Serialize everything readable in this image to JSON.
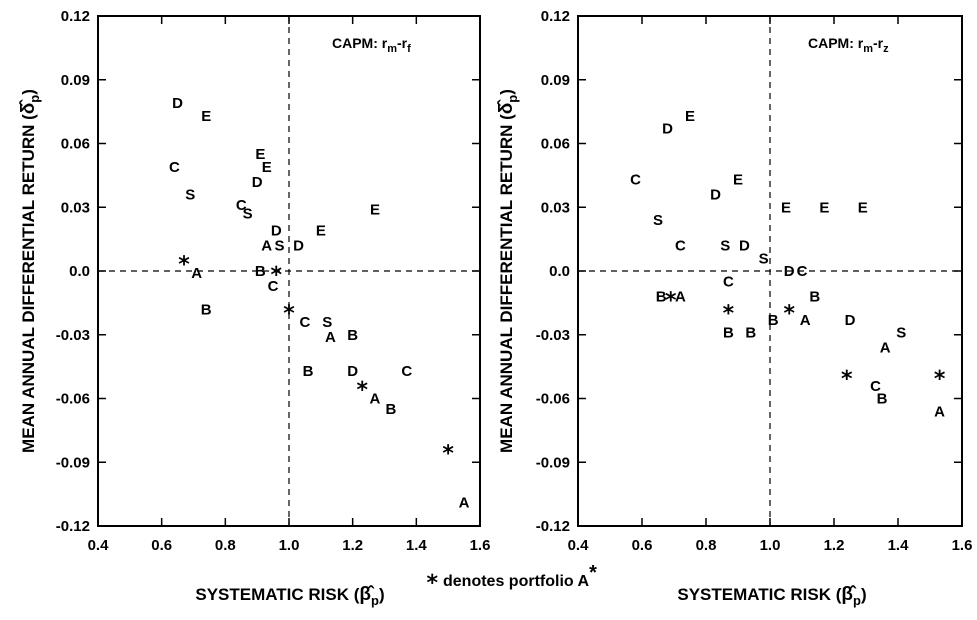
{
  "footnote": {
    "star": "*",
    "text": "denotes portfolio A",
    "sup": "*"
  },
  "chart_data": [
    {
      "type": "scatter",
      "annotation": {
        "prefix": "CAPM: r",
        "s1": "m",
        "dash": "-r",
        "s2": "f"
      },
      "xlabel": "SYSTEMATIC RISK (",
      "xlabel_symbol": "β̂",
      "xlabel_sub": "p",
      "xlabel_close": ")",
      "ylabel": "MEAN ANNUAL DIFFERENTIAL RETURN (",
      "ylabel_symbol": "δ̂",
      "ylabel_sub": "p",
      "ylabel_close": ")",
      "xlim": [
        0.4,
        1.6
      ],
      "ylim": [
        -0.12,
        0.12
      ],
      "xticks": [
        "0.4",
        "0.6",
        "0.8",
        "1.0",
        "1.2",
        "1.4",
        "1.6"
      ],
      "yticks": [
        "0.12",
        "0.09",
        "0.06",
        "0.03",
        "0.0",
        "-0.03",
        "-0.06",
        "-0.09",
        "-0.12"
      ],
      "reference_lines": {
        "x": 1.0,
        "y": 0.0
      },
      "points": [
        {
          "label": "D",
          "x": 0.65,
          "y": 0.079
        },
        {
          "label": "E",
          "x": 0.74,
          "y": 0.073
        },
        {
          "label": "E",
          "x": 0.91,
          "y": 0.055
        },
        {
          "label": "E",
          "x": 0.93,
          "y": 0.049
        },
        {
          "label": "C",
          "x": 0.64,
          "y": 0.049
        },
        {
          "label": "D",
          "x": 0.9,
          "y": 0.042
        },
        {
          "label": "S",
          "x": 0.69,
          "y": 0.036
        },
        {
          "label": "C",
          "x": 0.85,
          "y": 0.031
        },
        {
          "label": "S",
          "x": 0.87,
          "y": 0.027
        },
        {
          "label": "E",
          "x": 1.27,
          "y": 0.029
        },
        {
          "label": "D",
          "x": 0.96,
          "y": 0.019
        },
        {
          "label": "E",
          "x": 1.1,
          "y": 0.019
        },
        {
          "label": "A",
          "x": 0.93,
          "y": 0.012
        },
        {
          "label": "S",
          "x": 0.97,
          "y": 0.012
        },
        {
          "label": "D",
          "x": 1.03,
          "y": 0.012
        },
        {
          "label": "*",
          "x": 0.67,
          "y": 0.005
        },
        {
          "label": "A",
          "x": 0.71,
          "y": -0.001
        },
        {
          "label": "B",
          "x": 0.91,
          "y": 0.0
        },
        {
          "label": "*",
          "x": 0.96,
          "y": 0.0
        },
        {
          "label": "C",
          "x": 0.95,
          "y": -0.007
        },
        {
          "label": "B",
          "x": 0.74,
          "y": -0.018
        },
        {
          "label": "*",
          "x": 1.0,
          "y": -0.018
        },
        {
          "label": "C",
          "x": 1.05,
          "y": -0.024
        },
        {
          "label": "S",
          "x": 1.12,
          "y": -0.024
        },
        {
          "label": "A",
          "x": 1.13,
          "y": -0.031
        },
        {
          "label": "B",
          "x": 1.2,
          "y": -0.03
        },
        {
          "label": "B",
          "x": 1.06,
          "y": -0.047
        },
        {
          "label": "D",
          "x": 1.2,
          "y": -0.047
        },
        {
          "label": "C",
          "x": 1.37,
          "y": -0.047
        },
        {
          "label": "*",
          "x": 1.23,
          "y": -0.054
        },
        {
          "label": "A",
          "x": 1.27,
          "y": -0.06
        },
        {
          "label": "B",
          "x": 1.32,
          "y": -0.065
        },
        {
          "label": "*",
          "x": 1.5,
          "y": -0.084
        },
        {
          "label": "A",
          "x": 1.55,
          "y": -0.109
        }
      ]
    },
    {
      "type": "scatter",
      "annotation": {
        "prefix": "CAPM: r",
        "s1": "m",
        "dash": "-r",
        "s2": "z"
      },
      "xlabel": "SYSTEMATIC RISK (",
      "xlabel_symbol": "β̂",
      "xlabel_sub": "p",
      "xlabel_close": ")",
      "ylabel": "MEAN ANNUAL DIFFERENTIAL RETURN (",
      "ylabel_symbol": "δ̂",
      "ylabel_sub": "p",
      "ylabel_close": ")",
      "xlim": [
        0.4,
        1.6
      ],
      "ylim": [
        -0.12,
        0.12
      ],
      "xticks": [
        "0.4",
        "0.6",
        "0.8",
        "1.0",
        "1.2",
        "1.4",
        "1.6"
      ],
      "yticks": [
        "0.12",
        "0.09",
        "0.06",
        "0.03",
        "0.0",
        "-0.03",
        "-0.06",
        "-0.09",
        "-0.12"
      ],
      "reference_lines": {
        "x": 1.0,
        "y": 0.0
      },
      "points": [
        {
          "label": "E",
          "x": 0.75,
          "y": 0.073
        },
        {
          "label": "D",
          "x": 0.68,
          "y": 0.067
        },
        {
          "label": "C",
          "x": 0.58,
          "y": 0.043
        },
        {
          "label": "E",
          "x": 0.9,
          "y": 0.043
        },
        {
          "label": "D",
          "x": 0.83,
          "y": 0.036
        },
        {
          "label": "E",
          "x": 1.05,
          "y": 0.03
        },
        {
          "label": "E",
          "x": 1.17,
          "y": 0.03
        },
        {
          "label": "E",
          "x": 1.29,
          "y": 0.03
        },
        {
          "label": "S",
          "x": 0.65,
          "y": 0.024
        },
        {
          "label": "C",
          "x": 0.72,
          "y": 0.012
        },
        {
          "label": "S",
          "x": 0.86,
          "y": 0.012
        },
        {
          "label": "D",
          "x": 0.92,
          "y": 0.012
        },
        {
          "label": "S",
          "x": 0.98,
          "y": 0.006
        },
        {
          "label": "D",
          "x": 1.06,
          "y": 0.0
        },
        {
          "label": "C",
          "x": 1.1,
          "y": 0.0
        },
        {
          "label": "C",
          "x": 0.87,
          "y": -0.005
        },
        {
          "label": "B",
          "x": 0.66,
          "y": -0.012
        },
        {
          "label": "*",
          "x": 0.69,
          "y": -0.012
        },
        {
          "label": "A",
          "x": 0.72,
          "y": -0.012
        },
        {
          "label": "B",
          "x": 1.14,
          "y": -0.012
        },
        {
          "label": "*",
          "x": 0.87,
          "y": -0.018
        },
        {
          "label": "*",
          "x": 1.06,
          "y": -0.018
        },
        {
          "label": "B",
          "x": 1.01,
          "y": -0.023
        },
        {
          "label": "A",
          "x": 1.11,
          "y": -0.023
        },
        {
          "label": "D",
          "x": 1.25,
          "y": -0.023
        },
        {
          "label": "B",
          "x": 0.87,
          "y": -0.029
        },
        {
          "label": "B",
          "x": 0.94,
          "y": -0.029
        },
        {
          "label": "S",
          "x": 1.41,
          "y": -0.029
        },
        {
          "label": "A",
          "x": 1.36,
          "y": -0.036
        },
        {
          "label": "*",
          "x": 1.24,
          "y": -0.049
        },
        {
          "label": "*",
          "x": 1.53,
          "y": -0.049
        },
        {
          "label": "C",
          "x": 1.33,
          "y": -0.054
        },
        {
          "label": "B",
          "x": 1.35,
          "y": -0.06
        },
        {
          "label": "A",
          "x": 1.53,
          "y": -0.066
        }
      ]
    }
  ]
}
